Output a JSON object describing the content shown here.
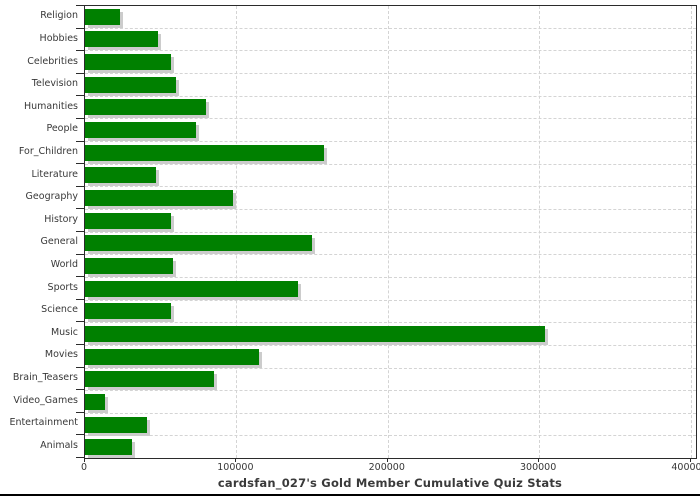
{
  "chart_data": {
    "type": "bar",
    "orientation": "horizontal",
    "title": "cardsfan_027's Gold Member Cumulative Quiz Stats",
    "xlabel": "",
    "ylabel": "",
    "categories": [
      "Religion",
      "Hobbies",
      "Celebrities",
      "Television",
      "Humanities",
      "People",
      "For_Children",
      "Literature",
      "Geography",
      "History",
      "General",
      "World",
      "Sports",
      "Science",
      "Music",
      "Movies",
      "Brain_Teasers",
      "Video_Games",
      "Entertainment",
      "Animals"
    ],
    "values": [
      23000,
      48000,
      57000,
      60000,
      80000,
      73000,
      158000,
      47000,
      98000,
      57000,
      150000,
      58000,
      141000,
      57000,
      304000,
      115000,
      85000,
      13000,
      41000,
      31000
    ],
    "xlim": [
      0,
      403000
    ],
    "x_ticks": [
      0,
      100000,
      200000,
      300000,
      400000
    ],
    "grid": "dashed",
    "legend": "none",
    "bar_color": "#008000",
    "bar_shadow_color": "#cccccc",
    "grid_color": "#d4d4d4",
    "frame_color": "#2b2b2b",
    "text_color": "#383838",
    "background_color": "#ffffff"
  }
}
